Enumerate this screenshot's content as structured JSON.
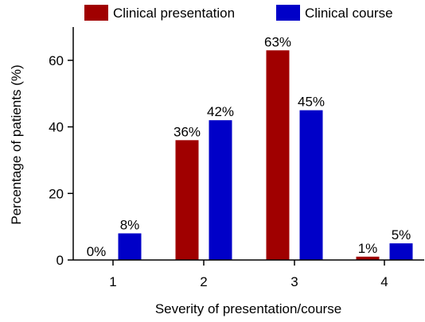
{
  "chart_data": {
    "type": "bar",
    "categories": [
      "1",
      "2",
      "3",
      "4"
    ],
    "series": [
      {
        "name": "Clinical presentation",
        "color": "#a00000",
        "values": [
          0,
          36,
          63,
          1
        ],
        "labels": [
          "0%",
          "36%",
          "63%",
          "1%"
        ]
      },
      {
        "name": "Clinical course",
        "color": "#0000c8",
        "values": [
          8,
          42,
          45,
          5
        ],
        "labels": [
          "8%",
          "42%",
          "45%",
          "5%"
        ]
      }
    ],
    "xlabel": "Severity of presentation/course",
    "ylabel": "Percentage of patients (%)",
    "ylim": [
      0,
      70
    ],
    "yticks": [
      0,
      20,
      40,
      60
    ],
    "grid": false,
    "legend_position": "top"
  }
}
